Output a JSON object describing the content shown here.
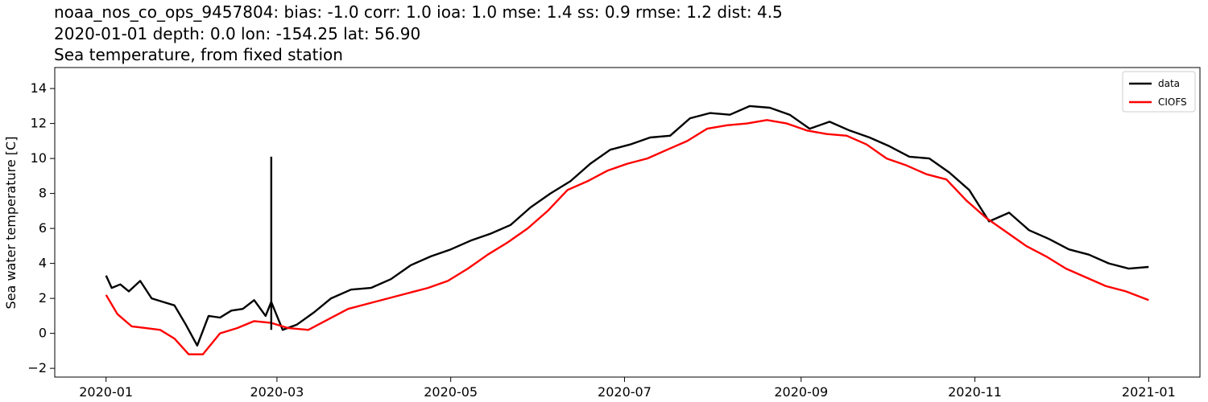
{
  "chart_data": {
    "type": "line",
    "title_lines": [
      "noaa_nos_co_ops_9457804: bias: -1.0  corr: 1.0  ioa: 1.0  mse: 1.4  ss: 0.9  rmse: 1.2  dist: 4.5",
      "2020-01-01 depth: 0.0 lon: -154.25 lat: 56.90",
      "Sea temperature, from fixed station"
    ],
    "xlabel": "",
    "ylabel": "Sea water temperature [C]",
    "xlim": [
      "2019-12-14",
      "2021-01-19"
    ],
    "ylim": [
      -2.5,
      15.2
    ],
    "xticks": [
      "2020-01",
      "2020-03",
      "2020-05",
      "2020-07",
      "2020-09",
      "2020-11",
      "2021-01"
    ],
    "yticks": [
      -2,
      0,
      2,
      4,
      6,
      8,
      10,
      12,
      14
    ],
    "grid": false,
    "legend_position": "top-right",
    "series": [
      {
        "name": "data",
        "color": "#000000",
        "x": [
          "2020-01-01",
          "2020-01-03",
          "2020-01-06",
          "2020-01-09",
          "2020-01-13",
          "2020-01-17",
          "2020-01-21",
          "2020-01-25",
          "2020-01-29",
          "2020-02-02",
          "2020-02-06",
          "2020-02-10",
          "2020-02-14",
          "2020-02-18",
          "2020-02-22",
          "2020-02-26",
          "2020-02-28",
          "2020-03-03",
          "2020-03-08",
          "2020-03-14",
          "2020-03-20",
          "2020-03-27",
          "2020-04-03",
          "2020-04-10",
          "2020-04-17",
          "2020-04-24",
          "2020-05-01",
          "2020-05-08",
          "2020-05-15",
          "2020-05-22",
          "2020-05-29",
          "2020-06-05",
          "2020-06-12",
          "2020-06-19",
          "2020-06-26",
          "2020-07-03",
          "2020-07-10",
          "2020-07-17",
          "2020-07-24",
          "2020-07-31",
          "2020-08-07",
          "2020-08-14",
          "2020-08-21",
          "2020-08-28",
          "2020-09-04",
          "2020-09-11",
          "2020-09-18",
          "2020-09-25",
          "2020-10-02",
          "2020-10-09",
          "2020-10-16",
          "2020-10-23",
          "2020-10-30",
          "2020-11-06",
          "2020-11-13",
          "2020-11-20",
          "2020-11-27",
          "2020-12-04",
          "2020-12-11",
          "2020-12-18",
          "2020-12-25",
          "2021-01-01"
        ],
        "y": [
          3.3,
          2.6,
          2.8,
          2.4,
          3.0,
          2.0,
          1.8,
          1.6,
          0.5,
          -0.7,
          1.0,
          0.9,
          1.3,
          1.4,
          1.9,
          1.0,
          1.8,
          0.2,
          0.5,
          1.2,
          2.0,
          2.5,
          2.6,
          3.1,
          3.9,
          4.4,
          4.8,
          5.3,
          5.7,
          6.2,
          7.2,
          8.0,
          8.7,
          9.7,
          10.5,
          10.8,
          11.2,
          11.3,
          12.3,
          12.6,
          12.5,
          13.0,
          12.9,
          12.5,
          11.7,
          12.1,
          11.6,
          11.2,
          10.7,
          10.1,
          10.0,
          9.2,
          8.2,
          6.4,
          6.9,
          5.9,
          5.4,
          4.8,
          4.5,
          4.0,
          3.7,
          3.8
        ]
      },
      {
        "name": "CIOFS",
        "color": "#ff0000",
        "x": [
          "2020-01-01",
          "2020-01-05",
          "2020-01-10",
          "2020-01-15",
          "2020-01-20",
          "2020-01-25",
          "2020-01-30",
          "2020-02-04",
          "2020-02-10",
          "2020-02-16",
          "2020-02-22",
          "2020-02-28",
          "2020-03-05",
          "2020-03-12",
          "2020-03-19",
          "2020-03-26",
          "2020-04-02",
          "2020-04-09",
          "2020-04-16",
          "2020-04-23",
          "2020-04-30",
          "2020-05-07",
          "2020-05-14",
          "2020-05-21",
          "2020-05-28",
          "2020-06-04",
          "2020-06-11",
          "2020-06-18",
          "2020-06-25",
          "2020-07-02",
          "2020-07-09",
          "2020-07-16",
          "2020-07-23",
          "2020-07-30",
          "2020-08-06",
          "2020-08-13",
          "2020-08-20",
          "2020-08-27",
          "2020-09-03",
          "2020-09-10",
          "2020-09-17",
          "2020-09-24",
          "2020-10-01",
          "2020-10-08",
          "2020-10-15",
          "2020-10-22",
          "2020-10-29",
          "2020-11-05",
          "2020-11-12",
          "2020-11-19",
          "2020-11-26",
          "2020-12-03",
          "2020-12-10",
          "2020-12-17",
          "2020-12-24",
          "2021-01-01"
        ],
        "y": [
          2.2,
          1.1,
          0.4,
          0.3,
          0.2,
          -0.3,
          -1.2,
          -1.2,
          0.0,
          0.3,
          0.7,
          0.6,
          0.3,
          0.2,
          0.8,
          1.4,
          1.7,
          2.0,
          2.3,
          2.6,
          3.0,
          3.7,
          4.5,
          5.2,
          6.0,
          7.0,
          8.2,
          8.7,
          9.3,
          9.7,
          10.0,
          10.5,
          11.0,
          11.7,
          11.9,
          12.0,
          12.2,
          12.0,
          11.6,
          11.4,
          11.3,
          10.8,
          10.0,
          9.6,
          9.1,
          8.8,
          7.6,
          6.6,
          5.8,
          5.0,
          4.4,
          3.7,
          3.2,
          2.7,
          2.4,
          1.9
        ]
      }
    ],
    "spikes": [
      {
        "series": "data",
        "x": "2020-02-28",
        "y_low": 0.2,
        "y_high": 10.1
      }
    ]
  }
}
